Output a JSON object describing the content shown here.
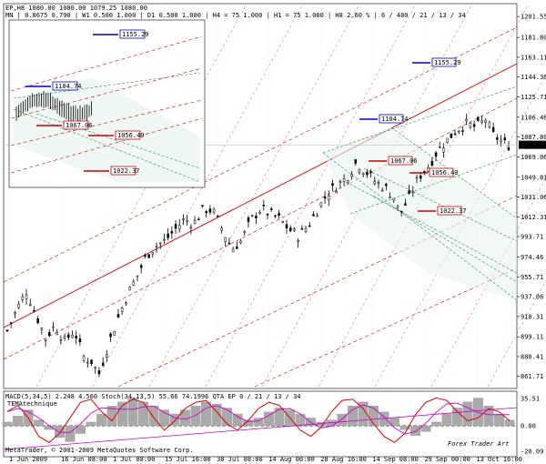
{
  "header": {
    "line1": "EP,H8  1080.00 1080.00 1079.25 1080.00",
    "line2": "MN | 0.8675  0.790 | W1 0.500  1.000 | D1 0.500  1.000 | H4 = 75  1.000 | H1 = 75  1.000 | H8  2.60 %  | 6 / 480 / 21 / 13 / 34"
  },
  "indicator": {
    "label": "MACD(5,34,5) 2.248 4.560  Stoch(34,13,5) 55.66 74.1996  QTA EP  0 / 21 / 13 / 34",
    "sublabel": "TEMAtechnique"
  },
  "footer": {
    "copyright": "MetaTrader, © 2001-2009 MetaQuotes Software Corp.",
    "watermark": "Forex Trader Art"
  },
  "colors": {
    "candle": "#000000",
    "channel_red": "#cc0000",
    "channel_green": "#2e8b57",
    "teal_fill": "#e8f4f0",
    "box_blue": "#0000cc",
    "box_red": "#cc0000",
    "macd_hist": "#a9a9a9",
    "stoch_main": "#dd0000",
    "stoch_signal": "#cc00cc"
  },
  "chart_data": {
    "type": "candlestick",
    "symbol": "EP",
    "timeframe": "H8",
    "y_ticks": [
      1201.55,
      1181.8,
      1163.11,
      1144.36,
      1125.71,
      1106.46,
      1087.8,
      1069.06,
      1049.81,
      1031.06,
      1012.31,
      993.71,
      974.46,
      955.71,
      937.06,
      918.31,
      899.11,
      880.41,
      861.71
    ],
    "ylim": [
      852,
      1212
    ],
    "current_price": 1080.0,
    "x_ticks": [
      "1 Jun 2009",
      "16 Jun 08:00",
      "1 Jul 08:00",
      "15 Jul 16:00",
      "30 Jul 08:00",
      "14 Aug 00:00",
      "28 Aug 16:00",
      "14 Sep 08:00",
      "29 Sep 00:00",
      "13 Oct 16:00"
    ],
    "price_path": [
      [
        0,
        905
      ],
      [
        4,
        925
      ],
      [
        8,
        942
      ],
      [
        12,
        920
      ],
      [
        16,
        898
      ],
      [
        20,
        910
      ],
      [
        24,
        895
      ],
      [
        28,
        905
      ],
      [
        32,
        880
      ],
      [
        36,
        875
      ],
      [
        38,
        861.7
      ],
      [
        42,
        890
      ],
      [
        46,
        915
      ],
      [
        50,
        938
      ],
      [
        54,
        955
      ],
      [
        58,
        975
      ],
      [
        62,
        985
      ],
      [
        66,
        990
      ],
      [
        70,
        1000
      ],
      [
        74,
        1010
      ],
      [
        78,
        1006
      ],
      [
        82,
        1020
      ],
      [
        86,
        1018
      ],
      [
        90,
        1000
      ],
      [
        94,
        982
      ],
      [
        98,
        990
      ],
      [
        102,
        1010
      ],
      [
        106,
        1020
      ],
      [
        110,
        1015
      ],
      [
        114,
        1010
      ],
      [
        118,
        1000
      ],
      [
        122,
        994
      ],
      [
        126,
        1005
      ],
      [
        130,
        1020
      ],
      [
        134,
        1035
      ],
      [
        138,
        1042
      ],
      [
        142,
        1050
      ],
      [
        146,
        1064
      ],
      [
        150,
        1055
      ],
      [
        154,
        1045
      ],
      [
        158,
        1040
      ],
      [
        162,
        1030
      ],
      [
        164,
        1015
      ],
      [
        168,
        1030
      ],
      [
        172,
        1050
      ],
      [
        176,
        1060
      ],
      [
        180,
        1075
      ],
      [
        184,
        1085
      ],
      [
        188,
        1095
      ],
      [
        192,
        1100
      ],
      [
        196,
        1097
      ],
      [
        200,
        1104.74
      ],
      [
        203,
        1090
      ],
      [
        206,
        1085
      ],
      [
        209,
        1080
      ]
    ],
    "price_boxes": [
      {
        "label": "1155.29",
        "color": "blue"
      },
      {
        "label": "1104.74",
        "color": "blue"
      },
      {
        "label": "1067.06",
        "color": "red"
      },
      {
        "label": "1056.49",
        "color": "red"
      },
      {
        "label": "1022.37",
        "color": "red"
      }
    ],
    "inset_boxes": [
      {
        "label": "1155.29",
        "color": "blue"
      },
      {
        "label": "1104.74",
        "color": "blue"
      },
      {
        "label": "1067.06",
        "color": "red"
      },
      {
        "label": "1056.49",
        "color": "red"
      },
      {
        "label": "1022.37",
        "color": "red"
      }
    ],
    "indicator_ticks": [
      "35.51",
      "0.00",
      "-20.09"
    ],
    "macd_hist": [
      2,
      5,
      8,
      3,
      -2,
      -6,
      -8,
      -4,
      2,
      6,
      10,
      12,
      14,
      12,
      10,
      8,
      6,
      8,
      10,
      12,
      11,
      9,
      6,
      3,
      4,
      7,
      9,
      8,
      6,
      4,
      2,
      3,
      6,
      10,
      12,
      10,
      7,
      4,
      -2,
      -5,
      -3,
      2,
      6,
      9,
      12,
      14,
      10,
      6,
      3
    ],
    "stoch": [
      70,
      80,
      60,
      30,
      20,
      35,
      60,
      85,
      90,
      70,
      55,
      80,
      90,
      85,
      60,
      40,
      55,
      75,
      85,
      88,
      70,
      50,
      40,
      55,
      75,
      85,
      80,
      60,
      40,
      30,
      45,
      70,
      88,
      90,
      75,
      50,
      30,
      20,
      35,
      65,
      85,
      92,
      88,
      70,
      55,
      60,
      75,
      70,
      55
    ]
  }
}
